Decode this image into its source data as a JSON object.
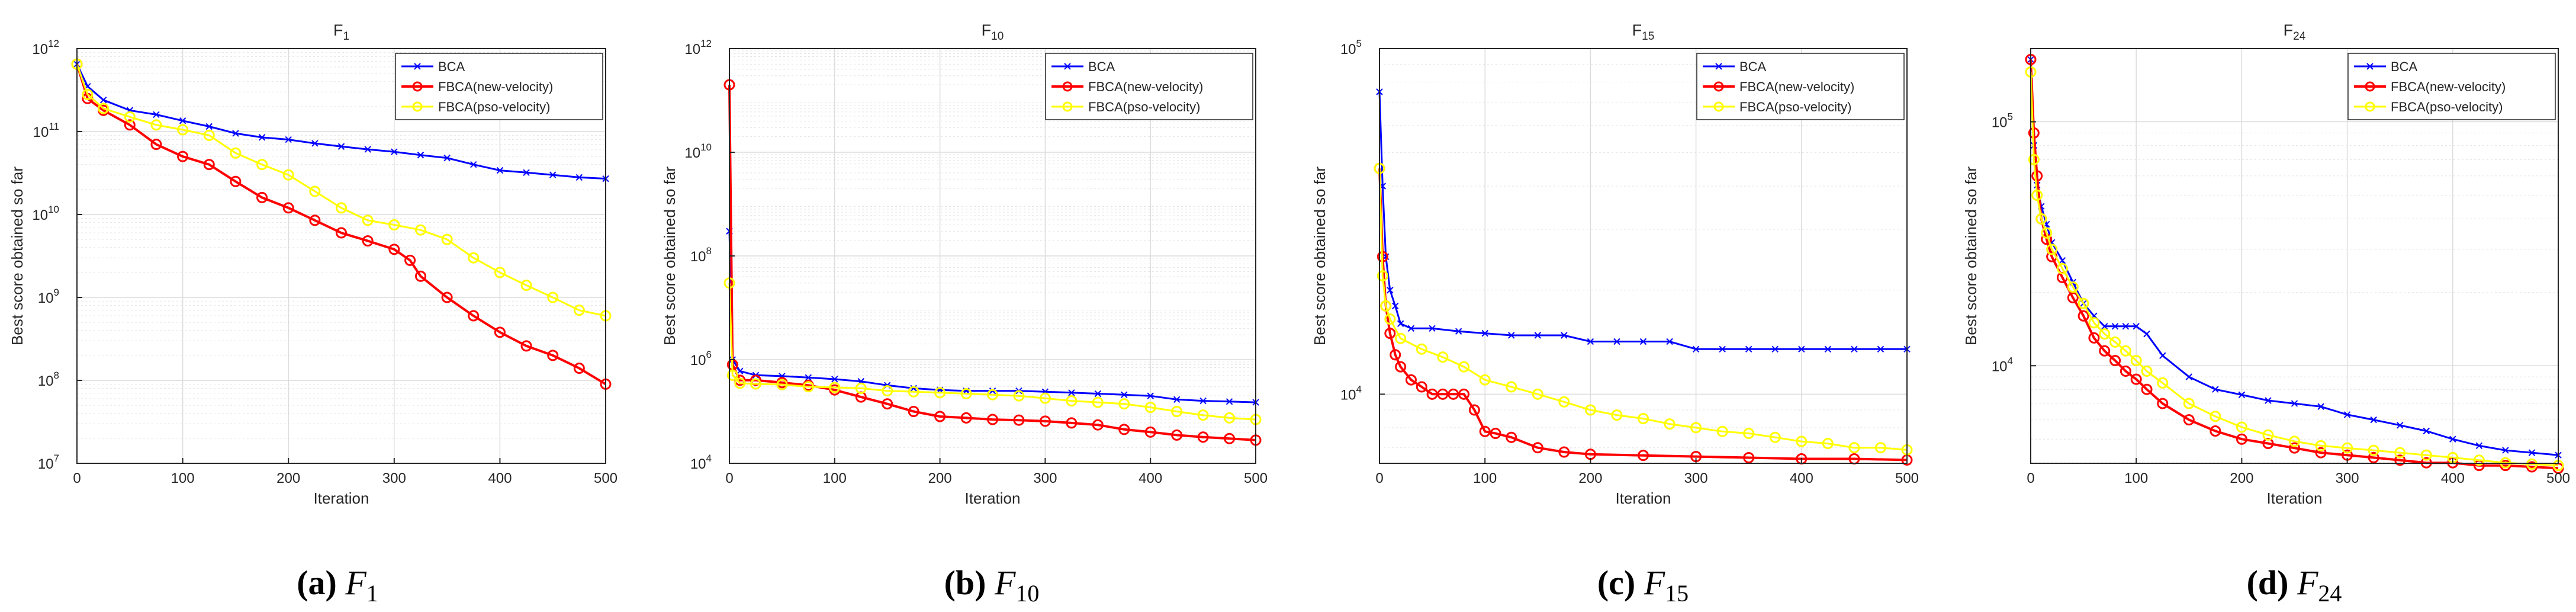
{
  "chart_data": [
    {
      "type": "line",
      "scale": "log",
      "title": "F",
      "title_sub": "1",
      "xlabel": "Iteration",
      "ylabel": "Best score obtained so far",
      "xlim": [
        0,
        500
      ],
      "ylim_exp": [
        7,
        12
      ],
      "xticks": [
        0,
        100,
        200,
        300,
        400,
        500
      ],
      "xtick_labels": [
        "0",
        "100",
        "200",
        "300",
        "400",
        "500"
      ],
      "ytick_exps": [
        7,
        8,
        9,
        10,
        11,
        12
      ],
      "ytick_labels": [
        "10",
        "10",
        "10",
        "10",
        "10",
        "10"
      ],
      "ytick_sups": [
        "7",
        "8",
        "9",
        "10",
        "11",
        "12"
      ],
      "grid": true,
      "legend_position": "top-right",
      "caption": {
        "letter": "(a)",
        "sym": "F",
        "sub": "1"
      },
      "series": [
        {
          "name": "BCA",
          "color": "#0000ff",
          "marker": "x",
          "x": [
            0,
            10,
            25,
            50,
            75,
            100,
            125,
            150,
            175,
            200,
            225,
            250,
            275,
            300,
            325,
            350,
            375,
            400,
            425,
            450,
            475,
            500
          ],
          "y": [
            650000000000.0,
            350000000000.0,
            240000000000.0,
            180000000000.0,
            160000000000.0,
            135000000000.0,
            115000000000.0,
            95000000000.0,
            85000000000.0,
            80000000000.0,
            72000000000.0,
            66000000000.0,
            61000000000.0,
            57000000000.0,
            52000000000.0,
            48000000000.0,
            40000000000.0,
            34000000000.0,
            32000000000.0,
            30000000000.0,
            28000000000.0,
            27000000000.0
          ]
        },
        {
          "name": "FBCA(new-velocity)",
          "color": "#ff0000",
          "marker": "o",
          "x": [
            0,
            10,
            25,
            50,
            75,
            100,
            125,
            150,
            175,
            200,
            225,
            250,
            275,
            300,
            315,
            325,
            350,
            375,
            400,
            425,
            450,
            475,
            500
          ],
          "y": [
            650000000000.0,
            250000000000.0,
            180000000000.0,
            120000000000.0,
            70000000000.0,
            50000000000.0,
            40000000000.0,
            25000000000.0,
            16000000000.0,
            12000000000.0,
            8500000000.0,
            6000000000.0,
            4800000000.0,
            3800000000.0,
            2800000000.0,
            1800000000.0,
            1000000000.0,
            600000000.0,
            380000000.0,
            260000000.0,
            200000000.0,
            140000000.0,
            90000000.0
          ]
        },
        {
          "name": "FBCA(pso-velocity)",
          "color": "#ffff00",
          "marker": "o",
          "x": [
            0,
            10,
            25,
            50,
            75,
            100,
            125,
            150,
            175,
            200,
            225,
            250,
            275,
            300,
            325,
            350,
            375,
            400,
            425,
            450,
            475,
            500
          ],
          "y": [
            650000000000.0,
            280000000000.0,
            190000000000.0,
            150000000000.0,
            120000000000.0,
            105000000000.0,
            90000000000.0,
            55000000000.0,
            40000000000.0,
            30000000000.0,
            19000000000.0,
            12000000000.0,
            8500000000.0,
            7500000000.0,
            6500000000.0,
            5000000000.0,
            3000000000.0,
            2000000000.0,
            1400000000.0,
            1000000000.0,
            700000000.0,
            600000000.0
          ]
        }
      ]
    },
    {
      "type": "line",
      "scale": "log",
      "title": "F",
      "title_sub": "10",
      "xlabel": "Iteration",
      "ylabel": "Best score obtained so far",
      "xlim": [
        0,
        500
      ],
      "ylim_exp": [
        4,
        12
      ],
      "xticks": [
        0,
        100,
        200,
        300,
        400,
        500
      ],
      "xtick_labels": [
        "0",
        "100",
        "200",
        "300",
        "400",
        "500"
      ],
      "ytick_exps": [
        4,
        6,
        8,
        10,
        12
      ],
      "ytick_labels": [
        "10",
        "10",
        "10",
        "10",
        "10"
      ],
      "ytick_sups": [
        "4",
        "6",
        "8",
        "10",
        "12"
      ],
      "grid": true,
      "legend_position": "top-right",
      "caption": {
        "letter": "(b)",
        "sym": "F",
        "sub": "10"
      },
      "series": [
        {
          "name": "BCA",
          "color": "#0000ff",
          "marker": "x",
          "x": [
            0,
            3,
            10,
            25,
            50,
            75,
            100,
            125,
            150,
            175,
            200,
            225,
            250,
            275,
            300,
            325,
            350,
            375,
            400,
            425,
            450,
            475,
            500
          ],
          "y": [
            300000000.0,
            1000000.0,
            600000.0,
            500000.0,
            480000.0,
            450000.0,
            420000.0,
            380000.0,
            320000.0,
            280000.0,
            260000.0,
            250000.0,
            250000.0,
            250000.0,
            240000.0,
            230000.0,
            220000.0,
            210000.0,
            200000.0,
            170000.0,
            160000.0,
            155000.0,
            150000.0
          ]
        },
        {
          "name": "FBCA(new-velocity)",
          "color": "#ff0000",
          "marker": "o",
          "x": [
            0,
            3,
            10,
            25,
            50,
            75,
            100,
            125,
            150,
            175,
            200,
            225,
            250,
            275,
            300,
            325,
            350,
            375,
            400,
            425,
            450,
            475,
            500
          ],
          "y": [
            200000000000.0,
            800000.0,
            400000.0,
            400000.0,
            360000.0,
            320000.0,
            260000.0,
            190000.0,
            140000.0,
            100000.0,
            80000.0,
            75000.0,
            70000.0,
            68000.0,
            65000.0,
            60000.0,
            55000.0,
            45000.0,
            40000.0,
            35000.0,
            32000.0,
            30000.0,
            28000.0
          ]
        },
        {
          "name": "FBCA(pso-velocity)",
          "color": "#ffff00",
          "marker": "o",
          "x": [
            0,
            3,
            10,
            25,
            50,
            75,
            100,
            125,
            150,
            175,
            200,
            225,
            250,
            275,
            300,
            325,
            350,
            375,
            400,
            425,
            450,
            475,
            500
          ],
          "y": [
            30000000.0,
            500000.0,
            350000.0,
            340000.0,
            330000.0,
            300000.0,
            290000.0,
            280000.0,
            250000.0,
            240000.0,
            230000.0,
            220000.0,
            210000.0,
            200000.0,
            180000.0,
            160000.0,
            150000.0,
            140000.0,
            120000.0,
            100000.0,
            85000.0,
            75000.0,
            70000.0
          ]
        }
      ]
    },
    {
      "type": "line",
      "scale": "log",
      "title": "F",
      "title_sub": "15",
      "xlabel": "Iteration",
      "ylabel": "Best score obtained so far",
      "xlim": [
        0,
        500
      ],
      "ylim_exp": [
        3.8,
        5
      ],
      "xticks": [
        0,
        100,
        200,
        300,
        400,
        500
      ],
      "xtick_labels": [
        "0",
        "100",
        "200",
        "300",
        "400",
        "500"
      ],
      "ytick_exps": [
        4,
        5
      ],
      "ytick_labels": [
        "10",
        "10"
      ],
      "ytick_sups": [
        "4",
        "5"
      ],
      "grid": true,
      "legend_position": "top-right",
      "caption": {
        "letter": "(c)",
        "sym": "F",
        "sub": "15"
      },
      "series": [
        {
          "name": "BCA",
          "color": "#0000ff",
          "marker": "x",
          "x": [
            0,
            3,
            6,
            10,
            15,
            20,
            30,
            50,
            75,
            100,
            125,
            150,
            175,
            200,
            225,
            250,
            275,
            300,
            325,
            350,
            375,
            400,
            425,
            450,
            475,
            500
          ],
          "y": [
            75000,
            40000,
            25000,
            20000,
            18000,
            16000,
            15500,
            15500,
            15200,
            15000,
            14800,
            14800,
            14800,
            14200,
            14200,
            14200,
            14200,
            13500,
            13500,
            13500,
            13500,
            13500,
            13500,
            13500,
            13500,
            13500
          ]
        },
        {
          "name": "FBCA(new-velocity)",
          "color": "#ff0000",
          "marker": "o",
          "x": [
            0,
            3,
            6,
            10,
            15,
            20,
            30,
            40,
            50,
            60,
            70,
            80,
            90,
            100,
            110,
            125,
            150,
            175,
            200,
            250,
            300,
            350,
            400,
            450,
            500
          ],
          "y": [
            45000,
            25000,
            18000,
            15000,
            13000,
            12000,
            11000,
            10500,
            10000,
            10000,
            10000,
            10000,
            9000,
            7800,
            7700,
            7500,
            7000,
            6800,
            6700,
            6650,
            6600,
            6550,
            6500,
            6500,
            6450
          ]
        },
        {
          "name": "FBCA(pso-velocity)",
          "color": "#ffff00",
          "marker": "o",
          "x": [
            0,
            3,
            6,
            10,
            20,
            40,
            60,
            80,
            100,
            125,
            150,
            175,
            200,
            225,
            250,
            275,
            300,
            325,
            350,
            375,
            400,
            425,
            450,
            475,
            500
          ],
          "y": [
            45000,
            22000,
            18000,
            16500,
            14500,
            13500,
            12800,
            12000,
            11000,
            10500,
            10000,
            9500,
            9000,
            8700,
            8500,
            8200,
            8000,
            7800,
            7700,
            7500,
            7300,
            7200,
            7000,
            7000,
            6900
          ]
        }
      ]
    },
    {
      "type": "line",
      "scale": "log",
      "title": "F",
      "title_sub": "24",
      "xlabel": "Iteration",
      "ylabel": "Best score obtained so far",
      "xlim": [
        0,
        500
      ],
      "ylim_exp": [
        3.6,
        5.3
      ],
      "xticks": [
        0,
        100,
        200,
        300,
        400,
        500
      ],
      "xtick_labels": [
        "0",
        "100",
        "200",
        "300",
        "400",
        "500"
      ],
      "ytick_exps": [
        4,
        5
      ],
      "ytick_labels": [
        "10",
        "10"
      ],
      "ytick_sups": [
        "4",
        "5"
      ],
      "grid": true,
      "legend_position": "top-right",
      "caption": {
        "letter": "(d)",
        "sym": "F",
        "sub": "24"
      },
      "series": [
        {
          "name": "BCA",
          "color": "#0000ff",
          "marker": "x",
          "x": [
            0,
            3,
            6,
            10,
            15,
            20,
            30,
            40,
            50,
            60,
            70,
            80,
            90,
            100,
            110,
            125,
            150,
            175,
            200,
            225,
            250,
            275,
            300,
            325,
            350,
            375,
            400,
            425,
            450,
            475,
            500
          ],
          "y": [
            180000,
            80000,
            55000,
            45000,
            38000,
            32000,
            27000,
            22000,
            18000,
            16000,
            14500,
            14500,
            14500,
            14500,
            13500,
            11000,
            9000,
            8000,
            7600,
            7200,
            7000,
            6800,
            6300,
            6000,
            5700,
            5400,
            5000,
            4700,
            4500,
            4400,
            4300
          ]
        },
        {
          "name": "FBCA(new-velocity)",
          "color": "#ff0000",
          "marker": "o",
          "x": [
            0,
            3,
            6,
            10,
            15,
            20,
            30,
            40,
            50,
            60,
            70,
            80,
            90,
            100,
            110,
            125,
            150,
            175,
            200,
            225,
            250,
            275,
            300,
            325,
            350,
            375,
            400,
            425,
            450,
            475,
            500
          ],
          "y": [
            180000,
            90000,
            60000,
            40000,
            33000,
            28000,
            23000,
            19000,
            16000,
            13000,
            11500,
            10500,
            9500,
            8800,
            8000,
            7000,
            6000,
            5400,
            5000,
            4800,
            4600,
            4400,
            4300,
            4200,
            4100,
            4000,
            4000,
            3900,
            3900,
            3850,
            3800
          ]
        },
        {
          "name": "FBCA(pso-velocity)",
          "color": "#ffff00",
          "marker": "o",
          "x": [
            0,
            3,
            6,
            10,
            15,
            20,
            30,
            40,
            50,
            60,
            70,
            80,
            90,
            100,
            110,
            125,
            150,
            175,
            200,
            225,
            250,
            275,
            300,
            325,
            350,
            375,
            400,
            425,
            450,
            475,
            500
          ],
          "y": [
            160000,
            70000,
            50000,
            40000,
            35000,
            30000,
            25000,
            21000,
            18000,
            15000,
            13500,
            12500,
            11500,
            10500,
            9500,
            8500,
            7000,
            6200,
            5600,
            5200,
            4900,
            4700,
            4600,
            4500,
            4400,
            4300,
            4200,
            4100,
            4000,
            3950,
            3900
          ]
        }
      ]
    }
  ]
}
